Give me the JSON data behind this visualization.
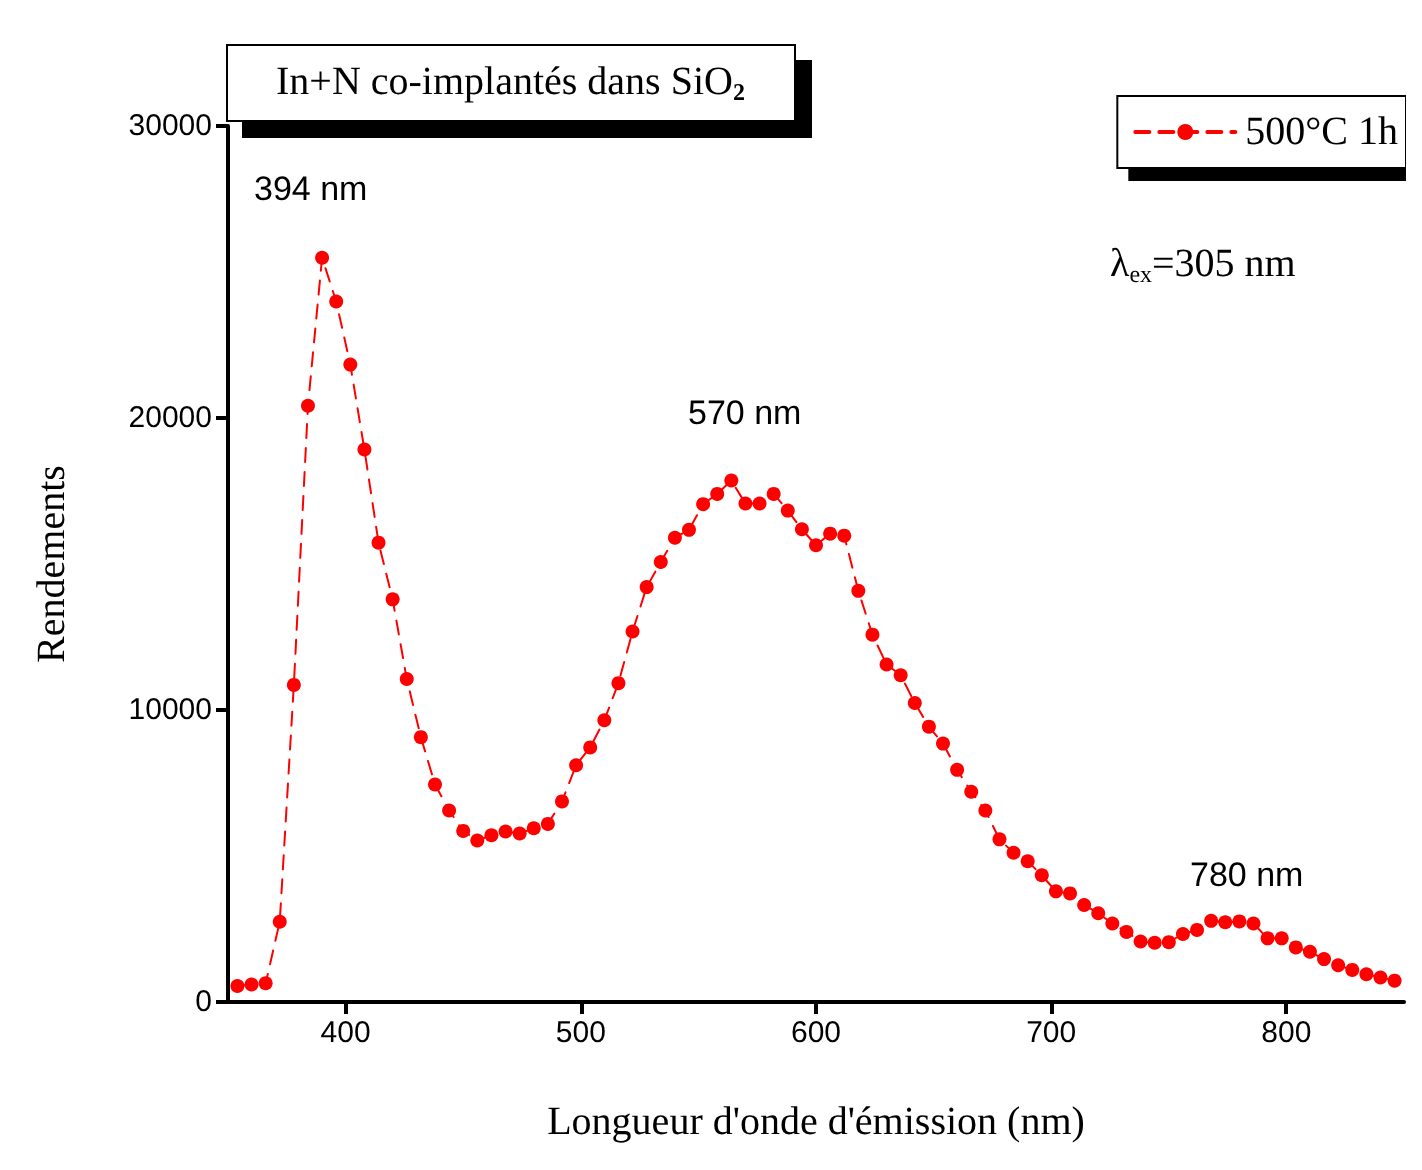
{
  "chart_data": {
    "type": "line",
    "title": "In+N co-implantés dans SiO$_{2}$",
    "xlabel": "Longueur d'onde d'émission (nm)",
    "ylabel": "Rendements",
    "x": [
      354,
      360,
      366,
      372,
      378,
      384,
      390,
      396,
      402,
      408,
      414,
      420,
      426,
      432,
      438,
      444,
      450,
      456,
      462,
      468,
      474,
      480,
      486,
      492,
      498,
      504,
      510,
      516,
      522,
      528,
      534,
      540,
      546,
      552,
      558,
      564,
      570,
      576,
      582,
      588,
      594,
      600,
      606,
      612,
      618,
      624,
      630,
      636,
      642,
      648,
      654,
      660,
      666,
      672,
      678,
      684,
      690,
      696,
      702,
      708,
      714,
      720,
      726,
      732,
      738,
      744,
      750,
      756,
      762,
      768,
      774,
      780,
      786,
      792,
      798,
      804,
      810,
      816,
      822,
      828,
      834,
      840,
      846
    ],
    "series": [
      {
        "name": "500°C 1h",
        "color": "#ff0000",
        "values": [
          550,
          600,
          640,
          2750,
          10860,
          20420,
          25490,
          23990,
          21830,
          18920,
          15730,
          13790,
          11060,
          9070,
          7450,
          6560,
          5860,
          5530,
          5710,
          5840,
          5770,
          5950,
          6100,
          6870,
          8110,
          8720,
          9650,
          10920,
          12690,
          14210,
          15070,
          15900,
          16170,
          17050,
          17400,
          17860,
          17070,
          17070,
          17400,
          16830,
          16190,
          15640,
          16040,
          15970,
          14080,
          12580,
          11560,
          11190,
          10240,
          9430,
          8850,
          7950,
          7200,
          6560,
          5570,
          5110,
          4820,
          4340,
          3790,
          3720,
          3320,
          3040,
          2690,
          2400,
          2070,
          2030,
          2050,
          2330,
          2470,
          2780,
          2730,
          2760,
          2690,
          2180,
          2180,
          1870,
          1720,
          1470,
          1260,
          1100,
          950,
          840,
          730
        ]
      }
    ],
    "xlim": [
      350,
      850
    ],
    "xticks": [
      400,
      500,
      600,
      700,
      800
    ],
    "ylim": [
      0,
      30000
    ],
    "yticks": [
      0,
      10000,
      20000,
      30000
    ],
    "annotations": [
      "394 nm",
      "570 nm",
      "780 nm",
      "λ$_{ex}$=305 nm"
    ],
    "legend": "top right",
    "marker": "circle",
    "line_style": "dashed",
    "grid": false
  }
}
